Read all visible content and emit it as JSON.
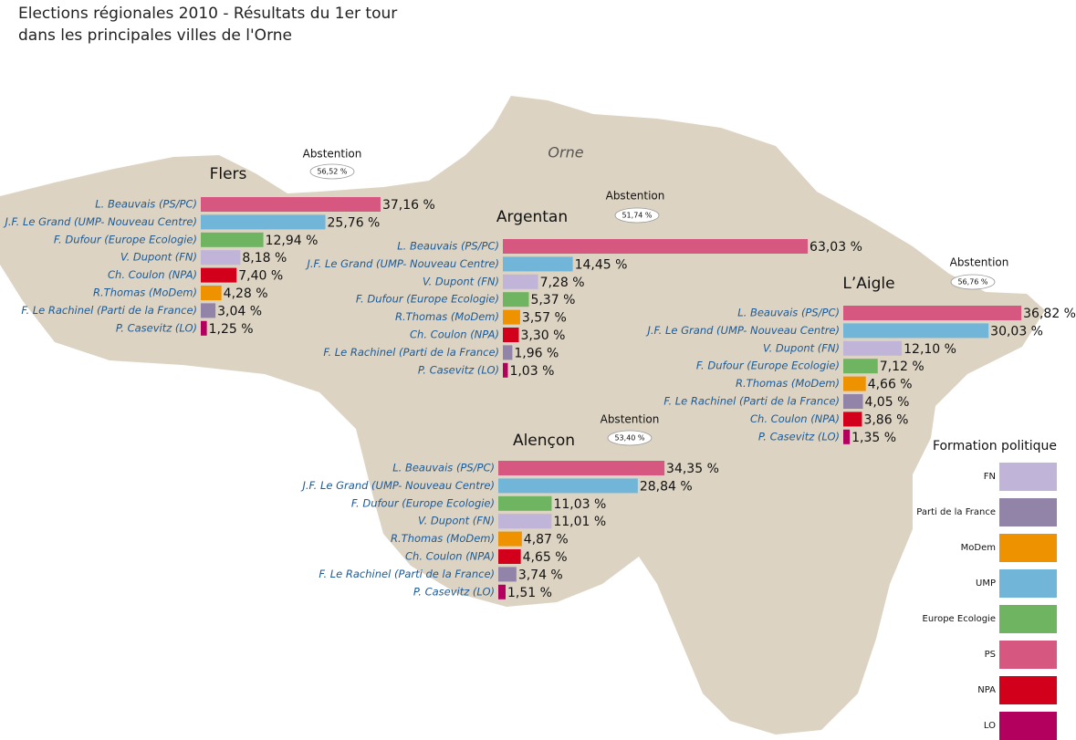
{
  "title": [
    "Elections régionales 2010 - Résultats du 1er tour",
    "dans les principales villes de l'Orne"
  ],
  "map_label": "Orne",
  "legend": {
    "title": "Formation politique",
    "items": [
      {
        "name": "FN",
        "color": "#c0b5d8"
      },
      {
        "name": "Parti de la France",
        "color": "#9283a8"
      },
      {
        "name": "MoDem",
        "color": "#ef9200"
      },
      {
        "name": "UMP",
        "color": "#71b6d8"
      },
      {
        "name": "Europe Ecologie",
        "color": "#6fb461"
      },
      {
        "name": "PS",
        "color": "#d6577f"
      },
      {
        "name": "NPA",
        "color": "#d2001a"
      },
      {
        "name": "LO",
        "color": "#b3005f"
      }
    ]
  },
  "chart_data": [
    {
      "type": "bar",
      "orientation": "horizontal",
      "title": "Flers",
      "abstention": {
        "label": "Abstention",
        "value": 56.52,
        "value_label": "56,52 %"
      },
      "categories": [
        "L. Beauvais (PS/PC)",
        "J.F. Le Grand (UMP- Nouveau Centre)",
        "F. Dufour (Europe Ecologie)",
        "V. Dupont (FN)",
        "Ch. Coulon (NPA)",
        "R.Thomas (MoDem)",
        "F. Le Rachinel (Parti de la France)",
        "P. Casevitz (LO)"
      ],
      "values": [
        37.16,
        25.76,
        12.94,
        8.18,
        7.4,
        4.28,
        3.04,
        1.25
      ],
      "value_labels": [
        "37,16 %",
        "25,76 %",
        "12,94 %",
        "8,18 %",
        "7,40 %",
        "4,28 %",
        "3,04 %",
        "1,25 %"
      ],
      "colors": [
        "#d6577f",
        "#71b6d8",
        "#6fb461",
        "#c0b5d8",
        "#d2001a",
        "#ef9200",
        "#9283a8",
        "#b3005f"
      ]
    },
    {
      "type": "bar",
      "orientation": "horizontal",
      "title": "Argentan",
      "abstention": {
        "label": "Abstention",
        "value": 51.74,
        "value_label": "51,74 %"
      },
      "categories": [
        "L. Beauvais (PS/PC)",
        "J.F. Le Grand (UMP- Nouveau Centre)",
        "V. Dupont (FN)",
        "F. Dufour (Europe Ecologie)",
        "R.Thomas (MoDem)",
        "Ch. Coulon (NPA)",
        "F. Le Rachinel (Parti de la France)",
        "P. Casevitz (LO)"
      ],
      "values": [
        63.03,
        14.45,
        7.28,
        5.37,
        3.57,
        3.3,
        1.96,
        1.03
      ],
      "value_labels": [
        "63,03 %",
        "14,45 %",
        "7,28 %",
        "5,37 %",
        "3,57 %",
        "3,30 %",
        "1,96 %",
        "1,03 %"
      ],
      "colors": [
        "#d6577f",
        "#71b6d8",
        "#c0b5d8",
        "#6fb461",
        "#ef9200",
        "#d2001a",
        "#9283a8",
        "#b3005f"
      ]
    },
    {
      "type": "bar",
      "orientation": "horizontal",
      "title": "L’Aigle",
      "abstention": {
        "label": "Abstention",
        "value": 56.76,
        "value_label": "56,76 %"
      },
      "categories": [
        "L. Beauvais (PS/PC)",
        "J.F. Le Grand (UMP- Nouveau Centre)",
        "V. Dupont (FN)",
        "F. Dufour (Europe Ecologie)",
        "R.Thomas (MoDem)",
        "F. Le Rachinel (Parti de la France)",
        "Ch. Coulon (NPA)",
        "P. Casevitz (LO)"
      ],
      "values": [
        36.82,
        30.03,
        12.1,
        7.12,
        4.66,
        4.05,
        3.86,
        1.35
      ],
      "value_labels": [
        "36,82 %",
        "30,03 %",
        "12,10 %",
        "7,12 %",
        "4,66 %",
        "4,05 %",
        "3,86 %",
        "1,35 %"
      ],
      "colors": [
        "#d6577f",
        "#71b6d8",
        "#c0b5d8",
        "#6fb461",
        "#ef9200",
        "#9283a8",
        "#d2001a",
        "#b3005f"
      ]
    },
    {
      "type": "bar",
      "orientation": "horizontal",
      "title": "Alençon",
      "abstention": {
        "label": "Abstention",
        "value": 53.4,
        "value_label": "53,40 %"
      },
      "categories": [
        "L. Beauvais (PS/PC)",
        "J.F. Le Grand (UMP- Nouveau Centre)",
        "F. Dufour (Europe Ecologie)",
        "V. Dupont (FN)",
        "R.Thomas (MoDem)",
        "Ch. Coulon (NPA)",
        "F. Le Rachinel (Parti de la France)",
        "P. Casevitz (LO)"
      ],
      "values": [
        34.35,
        28.84,
        11.03,
        11.01,
        4.87,
        4.65,
        3.74,
        1.51
      ],
      "value_labels": [
        "34,35 %",
        "28,84 %",
        "11,03 %",
        "11,01 %",
        "4,87 %",
        "4,65 %",
        "3,74 %",
        "1,51 %"
      ],
      "colors": [
        "#d6577f",
        "#71b6d8",
        "#6fb461",
        "#c0b5d8",
        "#ef9200",
        "#d2001a",
        "#9283a8",
        "#b3005f"
      ]
    }
  ]
}
